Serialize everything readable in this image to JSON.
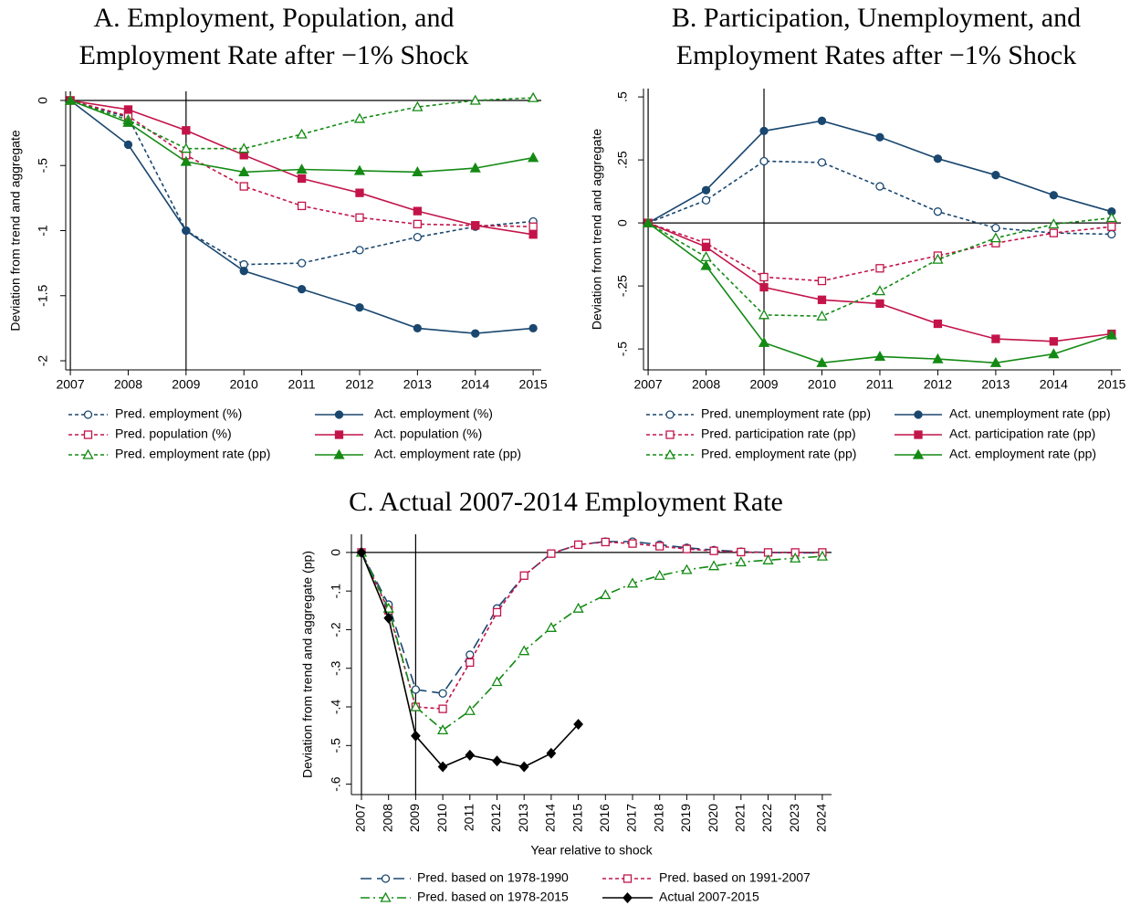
{
  "chart_data": [
    {
      "type": "line",
      "title": [
        "A. Employment, Population, and",
        "Employment Rate after −1% Shock"
      ],
      "y_label": "Deviation from trend and aggregate",
      "x": [
        2007,
        2008,
        2009,
        2010,
        2011,
        2012,
        2013,
        2014,
        2015
      ],
      "xlim": [
        2006.92,
        2015.14
      ],
      "xticks": [
        2007,
        2008,
        2009,
        2010,
        2011,
        2012,
        2013,
        2014,
        2015
      ],
      "ylim": [
        -2.07,
        0.07
      ],
      "yticks": [
        0,
        {
          "value": -0.5,
          "label": "-.5"
        },
        -1,
        -1.5,
        -2
      ],
      "xlines": [
        2007,
        2009
      ],
      "ylines": [
        0
      ],
      "series": [
        {
          "name": "Pred. employment (%)",
          "color": "#1a476f",
          "dash": "4 3",
          "marker": "circle",
          "filled": false,
          "values": [
            0,
            -0.13,
            -1.0,
            -1.26,
            -1.25,
            -1.15,
            -1.05,
            -0.97,
            -0.93
          ]
        },
        {
          "name": "Act. employment (%)",
          "color": "#1a476f",
          "dash": "none",
          "marker": "circle",
          "filled": true,
          "values": [
            0,
            -0.34,
            -1.0,
            -1.31,
            -1.45,
            -1.59,
            -1.75,
            -1.79,
            -1.75
          ]
        },
        {
          "name": "Pred. population (%)",
          "color": "#c3144a",
          "dash": "4 3",
          "marker": "square",
          "filled": false,
          "values": [
            0,
            -0.12,
            -0.42,
            -0.66,
            -0.81,
            -0.9,
            -0.95,
            -0.96,
            -0.97
          ]
        },
        {
          "name": "Act. population (%)",
          "color": "#c3144a",
          "dash": "none",
          "marker": "square",
          "filled": true,
          "values": [
            0,
            -0.07,
            -0.23,
            -0.42,
            -0.6,
            -0.71,
            -0.85,
            -0.96,
            -1.03
          ]
        },
        {
          "name": "Pred. employment rate (pp)",
          "color": "#148a14",
          "dash": "4 3",
          "marker": "triangle",
          "filled": false,
          "values": [
            0,
            -0.15,
            -0.37,
            -0.37,
            -0.26,
            -0.14,
            -0.05,
            0,
            0.02
          ]
        },
        {
          "name": "Act. employment rate (pp)",
          "color": "#148a14",
          "dash": "none",
          "marker": "triangle",
          "filled": true,
          "values": [
            0,
            -0.17,
            -0.47,
            -0.55,
            -0.53,
            -0.54,
            -0.55,
            -0.52,
            -0.44
          ]
        }
      ]
    },
    {
      "type": "line",
      "title": [
        "B. Participation, Unemployment, and",
        "Employment Rates after −1% Shock"
      ],
      "y_label": "Deviation from trend and aggregate",
      "x": [
        2007,
        2008,
        2009,
        2010,
        2011,
        2012,
        2013,
        2014,
        2015
      ],
      "xlim": [
        2006.92,
        2015.16
      ],
      "xticks": [
        2007,
        2008,
        2009,
        2010,
        2011,
        2012,
        2013,
        2014,
        2015
      ],
      "ylim": [
        -0.583,
        0.533
      ],
      "yticks": [
        {
          "value": 0.5,
          "label": ".5"
        },
        {
          "value": 0.25,
          "label": ".25"
        },
        0,
        {
          "value": -0.25,
          "label": "-.25"
        },
        {
          "value": -0.5,
          "label": "-.5"
        }
      ],
      "xlines": [
        2007,
        2009
      ],
      "ylines": [
        0
      ],
      "series": [
        {
          "name": "Pred. unemployment rate (pp)",
          "color": "#1a476f",
          "dash": "4 3",
          "marker": "circle",
          "filled": false,
          "values": [
            0,
            0.09,
            0.245,
            0.24,
            0.145,
            0.045,
            -0.02,
            -0.04,
            -0.045
          ]
        },
        {
          "name": "Act. unemployment rate (pp)",
          "color": "#1a476f",
          "dash": "none",
          "marker": "circle",
          "filled": true,
          "values": [
            0,
            0.13,
            0.365,
            0.405,
            0.34,
            0.255,
            0.19,
            0.11,
            0.045
          ]
        },
        {
          "name": "Pred. participation rate (pp)",
          "color": "#c3144a",
          "dash": "4 3",
          "marker": "square",
          "filled": false,
          "values": [
            0,
            -0.08,
            -0.215,
            -0.23,
            -0.18,
            -0.13,
            -0.08,
            -0.04,
            -0.015
          ]
        },
        {
          "name": "Act. participation rate (pp)",
          "color": "#c3144a",
          "dash": "none",
          "marker": "square",
          "filled": true,
          "values": [
            0,
            -0.095,
            -0.255,
            -0.305,
            -0.32,
            -0.4,
            -0.46,
            -0.47,
            -0.44
          ]
        },
        {
          "name": "Pred. employment rate (pp)",
          "color": "#148a14",
          "dash": "4 3",
          "marker": "triangle",
          "filled": false,
          "values": [
            0,
            -0.135,
            -0.365,
            -0.37,
            -0.27,
            -0.145,
            -0.06,
            -0.005,
            0.02
          ]
        },
        {
          "name": "Act. employment rate (pp)",
          "color": "#148a14",
          "dash": "none",
          "marker": "triangle",
          "filled": true,
          "values": [
            0,
            -0.17,
            -0.475,
            -0.555,
            -0.53,
            -0.54,
            -0.555,
            -0.52,
            -0.445
          ]
        }
      ]
    },
    {
      "type": "line",
      "title": [
        "C. Actual 2007-2014 Employment Rate"
      ],
      "y_label": "Deviation from trend and aggregate (pp)",
      "x_label": "Year relative to shock",
      "x": [
        2007,
        2008,
        2009,
        2010,
        2011,
        2012,
        2013,
        2014,
        2015,
        2016,
        2017,
        2018,
        2019,
        2020,
        2021,
        2022,
        2023,
        2024
      ],
      "xlim": [
        2006.63,
        2024.34
      ],
      "xticks": [
        2007,
        2008,
        2009,
        2010,
        2011,
        2012,
        2013,
        2014,
        2015,
        2016,
        2017,
        2018,
        2019,
        2020,
        2021,
        2022,
        2023,
        2024
      ],
      "ylim": [
        -0.627,
        0.047
      ],
      "yticks": [
        0,
        {
          "value": -0.1,
          "label": "-.1"
        },
        {
          "value": -0.2,
          "label": "-.2"
        },
        {
          "value": -0.3,
          "label": "-.3"
        },
        {
          "value": -0.4,
          "label": "-.4"
        },
        {
          "value": -0.5,
          "label": "-.5"
        },
        {
          "value": -0.6,
          "label": "-.6"
        }
      ],
      "xlines": [
        2007,
        2009
      ],
      "ylines": [
        0
      ],
      "series": [
        {
          "name": "Pred. based on 1978-1990",
          "color": "#1a476f",
          "dash": "12 6",
          "marker": "circle",
          "filled": false,
          "values": [
            0,
            -0.135,
            -0.355,
            -0.365,
            -0.265,
            -0.145,
            -0.06,
            -0.003,
            0.02,
            0.028,
            0.028,
            0.02,
            0.012,
            0.006,
            0.002,
            0,
            -0.001,
            -0.001
          ]
        },
        {
          "name": "Pred. based on 1991-2007",
          "color": "#c3144a",
          "dash": "4 3",
          "marker": "square",
          "filled": false,
          "values": [
            0,
            -0.15,
            -0.4,
            -0.405,
            -0.285,
            -0.155,
            -0.06,
            -0.003,
            0.02,
            0.027,
            0.023,
            0.016,
            0.009,
            0.004,
            0.001,
            0,
            0,
            0
          ]
        },
        {
          "name": "Pred. based on 1978-2015",
          "color": "#148a14",
          "dash": "10 4 2 4",
          "marker": "triangle",
          "filled": false,
          "values": [
            0,
            -0.145,
            -0.4,
            -0.46,
            -0.41,
            -0.335,
            -0.255,
            -0.195,
            -0.145,
            -0.11,
            -0.08,
            -0.06,
            -0.045,
            -0.035,
            -0.025,
            -0.02,
            -0.015,
            -0.01
          ]
        },
        {
          "name": "Actual 2007-2015",
          "color": "#000000",
          "dash": "none",
          "marker": "diamond",
          "filled": true,
          "values": [
            0,
            -0.17,
            -0.475,
            -0.555,
            -0.525,
            -0.54,
            -0.555,
            -0.52,
            -0.445,
            null,
            null,
            null,
            null,
            null,
            null,
            null,
            null,
            null
          ]
        }
      ]
    }
  ]
}
